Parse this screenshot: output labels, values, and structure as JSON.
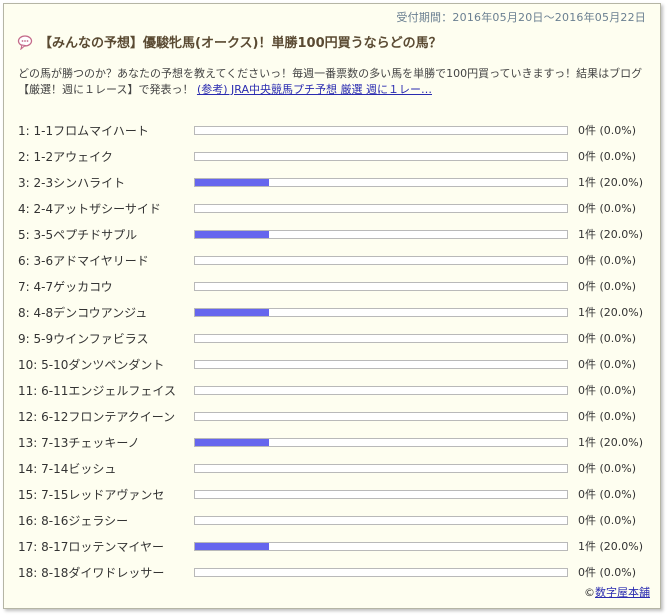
{
  "header": {
    "period": "受付期間：2016年05月20日～2016年05月22日",
    "title": "【みんなの予想】優駿牝馬(オークス)！単勝100円買うならどの馬？"
  },
  "description": {
    "text": "どの馬が勝つのか？あなたの予想を教えてくださいっ！毎週一番票数の多い馬を単勝で100円買っていきますっ！結果はブログ【厳選！週に１レース】で発表っ！",
    "link": "(参考) JRA中央競馬プチ予想 厳選 週に１レー…"
  },
  "entries": [
    {
      "label": "1: 1-1フロムマイハート",
      "count": "0件 (0.0%)",
      "pct": 0
    },
    {
      "label": "2: 1-2アウェイク",
      "count": "0件 (0.0%)",
      "pct": 0
    },
    {
      "label": "3: 2-3シンハライト",
      "count": "1件 (20.0%)",
      "pct": 20
    },
    {
      "label": "4: 2-4アットザシーサイド",
      "count": "0件 (0.0%)",
      "pct": 0
    },
    {
      "label": "5: 3-5ペプチドサプル",
      "count": "1件 (20.0%)",
      "pct": 20
    },
    {
      "label": "6: 3-6アドマイヤリード",
      "count": "0件 (0.0%)",
      "pct": 0
    },
    {
      "label": "7: 4-7ゲッカコウ",
      "count": "0件 (0.0%)",
      "pct": 0
    },
    {
      "label": "8: 4-8デンコウアンジュ",
      "count": "1件 (20.0%)",
      "pct": 20
    },
    {
      "label": "9: 5-9ウインファビラス",
      "count": "0件 (0.0%)",
      "pct": 0
    },
    {
      "label": "10: 5-10ダンツペンダント",
      "count": "0件 (0.0%)",
      "pct": 0
    },
    {
      "label": "11: 6-11エンジェルフェイス",
      "count": "0件 (0.0%)",
      "pct": 0
    },
    {
      "label": "12: 6-12フロンテアクイーン",
      "count": "0件 (0.0%)",
      "pct": 0
    },
    {
      "label": "13: 7-13チェッキーノ",
      "count": "1件 (20.0%)",
      "pct": 20
    },
    {
      "label": "14: 7-14ビッシュ",
      "count": "0件 (0.0%)",
      "pct": 0
    },
    {
      "label": "15: 7-15レッドアヴァンセ",
      "count": "0件 (0.0%)",
      "pct": 0
    },
    {
      "label": "16: 8-16ジェラシー",
      "count": "0件 (0.0%)",
      "pct": 0
    },
    {
      "label": "17: 8-17ロッテンマイヤー",
      "count": "1件 (20.0%)",
      "pct": 20
    },
    {
      "label": "18: 8-18ダイワドレッサー",
      "count": "0件 (0.0%)",
      "pct": 0
    }
  ],
  "footer": {
    "copyright_symbol": "©",
    "credit_link": "数字屋本舗"
  },
  "colors": {
    "bar_fill": "#6666ee",
    "link": "#2a2bb0",
    "title": "#5a4a32"
  }
}
